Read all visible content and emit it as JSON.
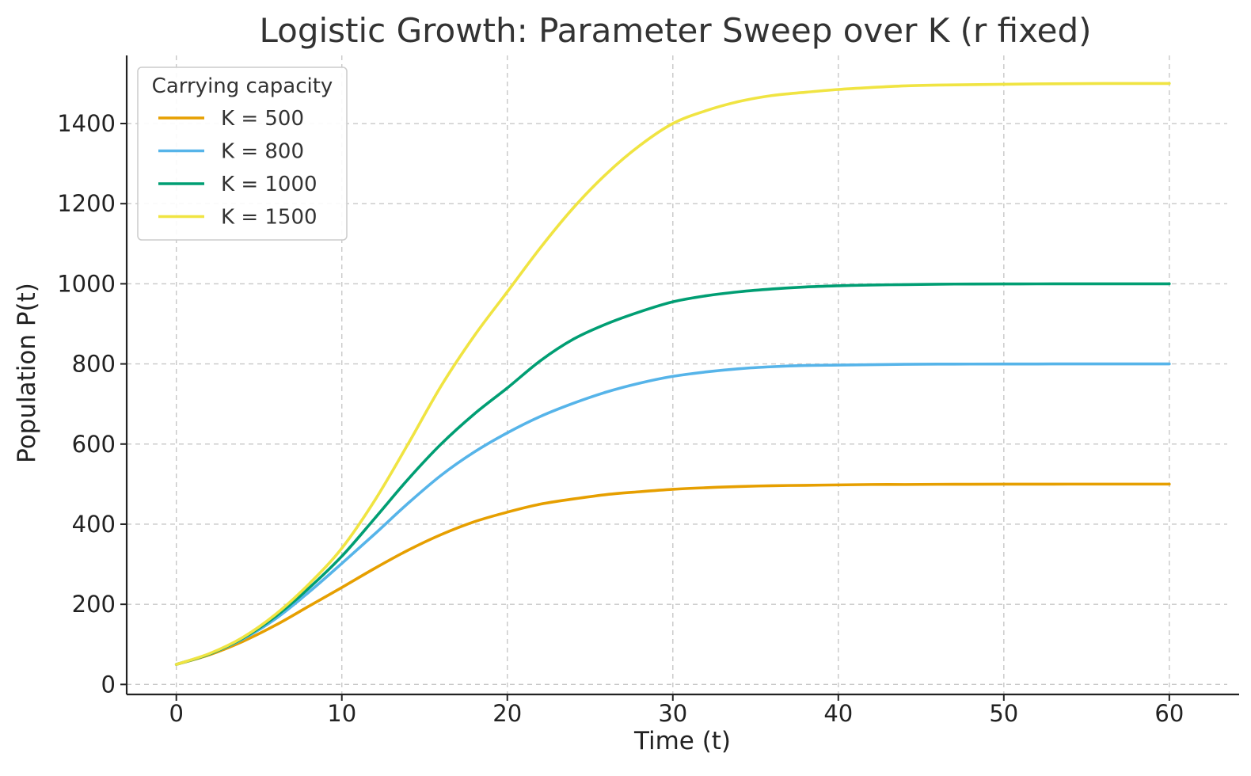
{
  "chart_data": {
    "type": "line",
    "title": "Logistic Growth: Parameter Sweep over K (r fixed)",
    "xlabel": "Time (t)",
    "ylabel": "Population P(t)",
    "xlim": [
      -3,
      63.5
    ],
    "ylim": [
      -25,
      1570
    ],
    "xticks": [
      0,
      10,
      20,
      30,
      40,
      50,
      60
    ],
    "yticks": [
      0,
      200,
      400,
      600,
      800,
      1000,
      1200,
      1400
    ],
    "grid": true,
    "legend": {
      "title": "Carrying capacity",
      "placement": "top-left"
    },
    "x": [
      0,
      2,
      4,
      6,
      8,
      10,
      12,
      14,
      16,
      18,
      20,
      22,
      24,
      26,
      28,
      30,
      32,
      34,
      36,
      38,
      40,
      42,
      44,
      46,
      48,
      50,
      52,
      54,
      56,
      58,
      60
    ],
    "series": [
      {
        "name": "K = 500",
        "color": "#E69F00",
        "values": [
          50,
          74,
          107,
          148,
          195,
          242,
          290,
          335,
          374,
          406,
          430,
          450,
          463,
          474,
          481,
          487,
          491,
          494,
          496,
          497,
          498,
          499,
          499,
          499.5,
          499.7,
          499.8,
          499.9,
          500,
          500,
          500,
          500
        ]
      },
      {
        "name": "K = 800",
        "color": "#56B4E9",
        "values": [
          50,
          76,
          113,
          164,
          230,
          302,
          376,
          452,
          522,
          580,
          628,
          669,
          702,
          730,
          752,
          769,
          780,
          788,
          793,
          796,
          797,
          798,
          799,
          799.5,
          799.7,
          799.8,
          799.9,
          800,
          800,
          800,
          800
        ]
      },
      {
        "name": "K = 1000",
        "color": "#009E73",
        "values": [
          50,
          76,
          115,
          170,
          240,
          320,
          415,
          512,
          600,
          675,
          740,
          808,
          862,
          900,
          930,
          955,
          970,
          980,
          987,
          992,
          995,
          997,
          998,
          999,
          999.5,
          999.7,
          999.8,
          999.9,
          1000,
          1000,
          1000
        ]
      },
      {
        "name": "K = 1500",
        "color": "#F0E442",
        "values": [
          50,
          77,
          117,
          175,
          250,
          340,
          460,
          600,
          745,
          870,
          980,
          1090,
          1190,
          1275,
          1345,
          1400,
          1432,
          1455,
          1470,
          1478,
          1485,
          1490,
          1494,
          1496,
          1497,
          1498,
          1499,
          1499.5,
          1500,
          1500,
          1500
        ]
      }
    ]
  }
}
